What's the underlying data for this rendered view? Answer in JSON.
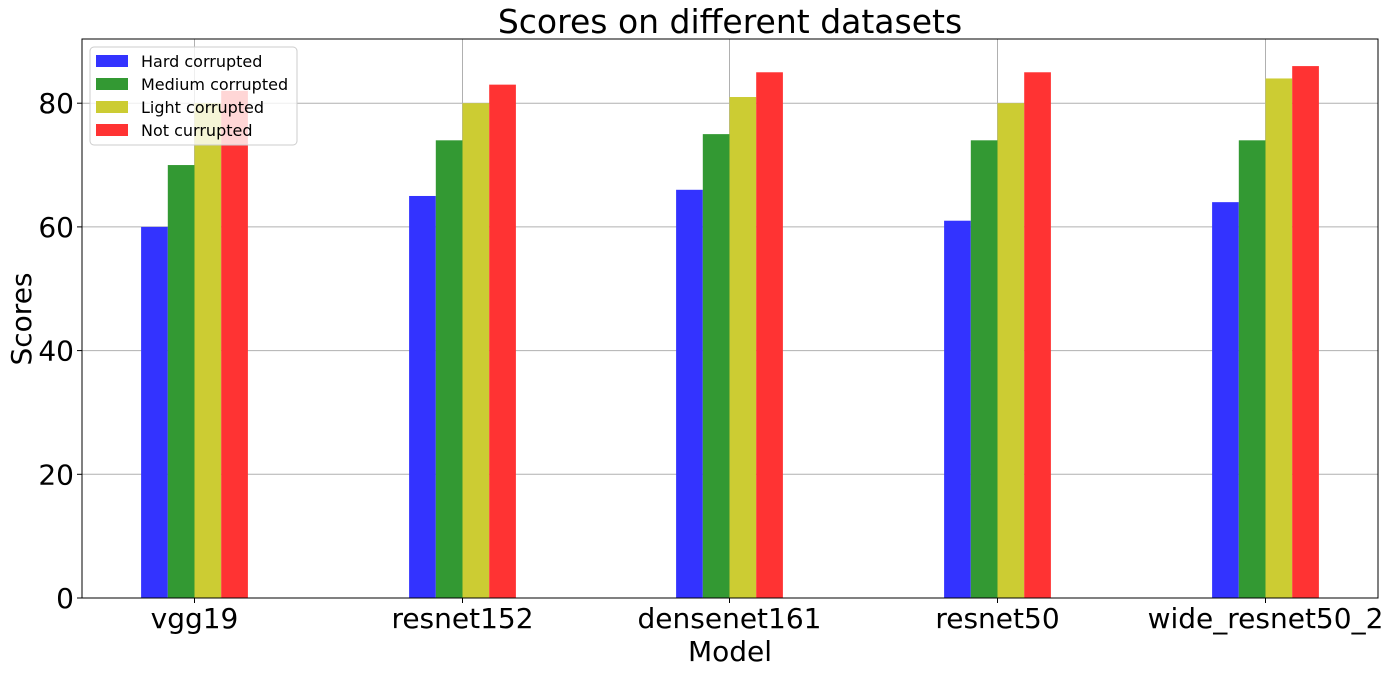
{
  "chart_data": {
    "type": "bar",
    "title": "Scores on different datasets",
    "xlabel": "Model",
    "ylabel": "Scores",
    "categories": [
      "vgg19",
      "resnet152",
      "densenet161",
      "resnet50",
      "wide_resnet50_2"
    ],
    "series": [
      {
        "name": "Hard corrupted",
        "color": "#3333ff",
        "values": [
          60,
          65,
          66,
          61,
          64
        ]
      },
      {
        "name": "Medium corrupted",
        "color": "#339933",
        "values": [
          70,
          74,
          75,
          74,
          74
        ]
      },
      {
        "name": "Light corrupted",
        "color": "#cccc33",
        "values": [
          80,
          80,
          81,
          80,
          84
        ]
      },
      {
        "name": "Not currupted",
        "color": "#ff3333",
        "values": [
          82,
          83,
          85,
          85,
          86
        ]
      }
    ],
    "ylim": [
      0,
      90
    ],
    "yticks": [
      0,
      20,
      40,
      60,
      80
    ],
    "grid": true,
    "legend_position": "top-left"
  }
}
